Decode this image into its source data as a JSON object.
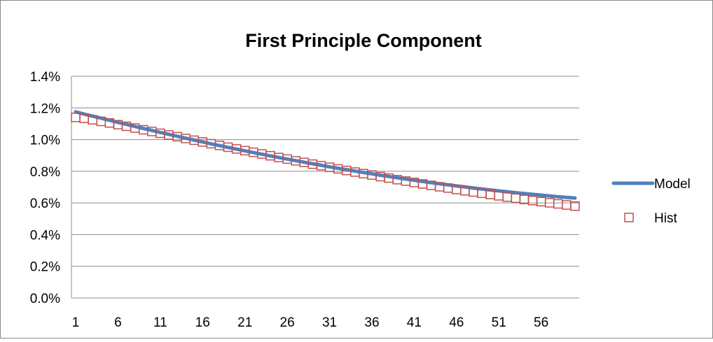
{
  "chart_data": {
    "type": "line",
    "title": "First Principle Component",
    "xlabel": "",
    "ylabel": "",
    "x": [
      1,
      2,
      3,
      4,
      5,
      6,
      7,
      8,
      9,
      10,
      11,
      12,
      13,
      14,
      15,
      16,
      17,
      18,
      19,
      20,
      21,
      22,
      23,
      24,
      25,
      26,
      27,
      28,
      29,
      30,
      31,
      32,
      33,
      34,
      35,
      36,
      37,
      38,
      39,
      40,
      41,
      42,
      43,
      44,
      45,
      46,
      47,
      48,
      49,
      50,
      51,
      52,
      53,
      54,
      55,
      56,
      57,
      58,
      59,
      60
    ],
    "x_tick_labels": [
      "1",
      "6",
      "11",
      "16",
      "21",
      "26",
      "31",
      "36",
      "41",
      "46",
      "51",
      "56"
    ],
    "y_tick_labels": [
      "0.0%",
      "0.2%",
      "0.4%",
      "0.6%",
      "0.8%",
      "1.0%",
      "1.2%",
      "1.4%"
    ],
    "ylim": [
      0,
      0.014
    ],
    "y_format": "percent",
    "grid": "horizontal",
    "legend_position": "right",
    "series": [
      {
        "name": "Model",
        "style": "line",
        "color": "#4f81bd",
        "values": [
          0.01175,
          0.01161,
          0.01148,
          0.01135,
          0.01122,
          0.01108,
          0.01096,
          0.01083,
          0.0107,
          0.01058,
          0.01045,
          0.01033,
          0.01021,
          0.01009,
          0.00997,
          0.00985,
          0.00973,
          0.00962,
          0.00951,
          0.0094,
          0.00929,
          0.00918,
          0.00908,
          0.00897,
          0.00887,
          0.00877,
          0.00867,
          0.00857,
          0.00847,
          0.00838,
          0.00828,
          0.00819,
          0.0081,
          0.00801,
          0.00792,
          0.00784,
          0.00775,
          0.00767,
          0.00759,
          0.00751,
          0.00743,
          0.00736,
          0.00728,
          0.00721,
          0.00714,
          0.00707,
          0.00701,
          0.00694,
          0.00688,
          0.00682,
          0.00676,
          0.0067,
          0.00665,
          0.00659,
          0.00654,
          0.00649,
          0.00644,
          0.00639,
          0.00635,
          0.00631
        ]
      },
      {
        "name": "Hist",
        "style": "marker",
        "color": "#c0504d",
        "values": [
          0.0114,
          0.01134,
          0.01125,
          0.01115,
          0.01105,
          0.01094,
          0.01084,
          0.01073,
          0.01062,
          0.01051,
          0.0104,
          0.01029,
          0.01018,
          0.01007,
          0.00996,
          0.00985,
          0.00974,
          0.00963,
          0.00952,
          0.00941,
          0.0093,
          0.0092,
          0.00909,
          0.00898,
          0.00887,
          0.00877,
          0.00866,
          0.00856,
          0.00845,
          0.00835,
          0.00825,
          0.00815,
          0.00805,
          0.00795,
          0.00785,
          0.00776,
          0.00766,
          0.00757,
          0.00747,
          0.00738,
          0.00729,
          0.0072,
          0.00711,
          0.00702,
          0.00694,
          0.00685,
          0.00677,
          0.00669,
          0.00661,
          0.00653,
          0.00645,
          0.00637,
          0.0063,
          0.00622,
          0.00615,
          0.00608,
          0.00601,
          0.00594,
          0.00587,
          0.0058
        ]
      }
    ]
  }
}
